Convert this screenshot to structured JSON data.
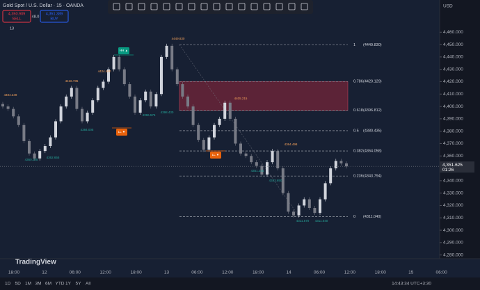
{
  "header": {
    "title": "Gold Spot / U.S. Dollar · 15 · OANDA",
    "sell_price": "4,350.909",
    "sell": "SELL",
    "spread": "48.0",
    "buy_price": "4,351.389",
    "buy": "BUY",
    "indicator": "13",
    "currency": "USD"
  },
  "chart_data": {
    "type": "candlestick",
    "values": [
      4400,
      4398,
      4392,
      4385,
      4372,
      4362,
      4358,
      4364,
      4368,
      4375,
      4388,
      4400,
      4408,
      4415,
      4398,
      4388,
      4395,
      4405,
      4415,
      4420,
      4430,
      4440,
      4430,
      4418,
      4408,
      4395,
      4405,
      4412,
      4400,
      4410,
      4440,
      4449,
      4430,
      4418,
      4408,
      4400,
      4385,
      4373,
      4365,
      4375,
      4385,
      4390,
      4403,
      4390,
      4370,
      4362,
      4360,
      4355,
      4352,
      4345,
      4355,
      4364,
      4350,
      4330,
      4315,
      4312,
      4320,
      4325,
      4318,
      4314,
      4325,
      4338,
      4350,
      4356,
      4354,
      4351.6
    ],
    "ylim": [
      4277,
      4486
    ],
    "yticks": [
      {
        "value": 4280,
        "label": "4,280.000"
      },
      {
        "value": 4290,
        "label": "4,290.000"
      },
      {
        "value": 4300,
        "label": "4,300.000"
      },
      {
        "value": 4310,
        "label": "4,310.000"
      },
      {
        "value": 4320,
        "label": "4,320.000"
      },
      {
        "value": 4330,
        "label": "4,330.000"
      },
      {
        "value": 4340,
        "label": "4,340.000"
      },
      {
        "value": 4360,
        "label": "4,360.000"
      },
      {
        "value": 4370,
        "label": "4,370.000"
      },
      {
        "value": 4380,
        "label": "4,380.000"
      },
      {
        "value": 4390,
        "label": "4,390.000"
      },
      {
        "value": 4400,
        "label": "4,400.000"
      },
      {
        "value": 4410,
        "label": "4,410.000"
      },
      {
        "value": 4420,
        "label": "4,420.000"
      },
      {
        "value": 4430,
        "label": "4,430.000"
      },
      {
        "value": 4440,
        "label": "4,440.000"
      },
      {
        "value": 4450,
        "label": "4,450.000"
      },
      {
        "value": 4460,
        "label": "4,460.000"
      }
    ],
    "time_labels": [
      "18:00",
      "12",
      "06:00",
      "12:00",
      "18:00",
      "13",
      "06:00",
      "12:00",
      "18:00",
      "14",
      "06:00",
      "12:00",
      "18:00",
      "15",
      "06:00"
    ],
    "current_price": {
      "value": 4351.625,
      "label": "4,351.625",
      "countdown": "01:26"
    },
    "fib_levels": [
      {
        "ratio": "1",
        "value": 4449.83,
        "label": "(4449.830)"
      },
      {
        "ratio": "0.786",
        "value": 4420.129,
        "label": "(4420.129)"
      },
      {
        "ratio": "0.618",
        "value": 4396.812,
        "label": "(4396.812)"
      },
      {
        "ratio": "0.5",
        "value": 4380.435,
        "label": "(4380.435)"
      },
      {
        "ratio": "0.382",
        "value": 4364.058,
        "label": "(4364.058)"
      },
      {
        "ratio": "0.236",
        "value": 4343.794,
        "label": "(4343.794)"
      },
      {
        "ratio": "0",
        "value": 4311.04,
        "label": "(4311.040)"
      }
    ],
    "annotations": [
      "4449.830",
      "4424.460",
      "4416.735",
      "4404.249",
      "4405.215",
      "4384.005",
      "4396.575",
      "4398.430",
      "4360.295",
      "4362.655",
      "4364.498",
      "4351.255",
      "4343.650",
      "4311.570",
      "4311.040"
    ],
    "markers": [
      "HH ▲",
      "LL ▼",
      "LL ▼"
    ]
  },
  "footer": {
    "brand": "TradingView",
    "ranges": [
      "1D",
      "5D",
      "1M",
      "3M",
      "6M",
      "YTD",
      "1Y",
      "5Y",
      "All"
    ],
    "clock": "14:43:34 UTC+3:30"
  }
}
